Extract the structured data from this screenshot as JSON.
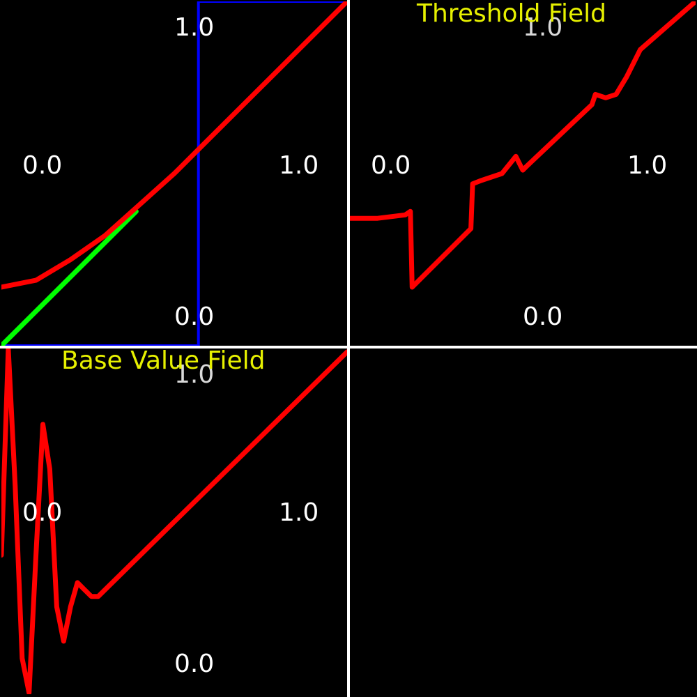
{
  "chart_data": [
    {
      "type": "line",
      "title": "",
      "axis_labels": {
        "top": "1.0",
        "bottom": "0.0",
        "left": "0.0",
        "right": "1.0"
      },
      "xlim": [
        0,
        1
      ],
      "ylim": [
        0,
        1
      ],
      "series": [
        {
          "color": "#0000ff",
          "x": [
            0,
            0.57,
            0.57,
            1.0
          ],
          "y": [
            0,
            0,
            1.0,
            1.0
          ]
        },
        {
          "color": "#00ff00",
          "x": [
            0,
            0.25,
            0.39
          ],
          "y": [
            0,
            0.25,
            0.39
          ]
        },
        {
          "color": "#ff0000",
          "x": [
            0,
            0.1,
            0.2,
            0.3,
            0.4,
            0.5,
            0.57,
            0.7,
            0.85,
            1.0
          ],
          "y": [
            0.17,
            0.19,
            0.25,
            0.32,
            0.41,
            0.5,
            0.57,
            0.7,
            0.85,
            1.0
          ]
        }
      ]
    },
    {
      "type": "line",
      "title": "Threshold Field",
      "axis_labels": {
        "top": "1.0",
        "bottom": "0.0",
        "left": "0.0",
        "right": "1.0"
      },
      "xlim": [
        0,
        1
      ],
      "ylim": [
        0,
        1
      ],
      "series": [
        {
          "color": "#ff0000",
          "x": [
            0,
            0.08,
            0.16,
            0.175,
            0.18,
            0.35,
            0.355,
            0.38,
            0.44,
            0.48,
            0.5,
            0.51,
            0.7,
            0.71,
            0.74,
            0.77,
            0.8,
            0.84,
            1.0
          ],
          "y": [
            0.37,
            0.37,
            0.38,
            0.39,
            0.17,
            0.34,
            0.47,
            0.48,
            0.5,
            0.55,
            0.51,
            0.52,
            0.7,
            0.73,
            0.72,
            0.73,
            0.78,
            0.86,
            1.0
          ]
        }
      ]
    },
    {
      "type": "line",
      "title": "Base Value Field",
      "axis_labels": {
        "top": "1.0",
        "bottom": "0.0",
        "left": "0.0",
        "right": "1.0"
      },
      "xlim": [
        0,
        1
      ],
      "ylim": [
        0,
        1
      ],
      "series": [
        {
          "color": "#ff0000",
          "x": [
            0,
            0.02,
            0.04,
            0.06,
            0.08,
            0.1,
            0.12,
            0.14,
            0.16,
            0.18,
            0.2,
            0.22,
            0.24,
            0.26,
            0.28,
            1.0
          ],
          "y": [
            0.4,
            1.0,
            0.6,
            0.1,
            0.0,
            0.4,
            0.78,
            0.65,
            0.25,
            0.15,
            0.25,
            0.32,
            0.3,
            0.28,
            0.28,
            0.99
          ]
        }
      ]
    }
  ]
}
